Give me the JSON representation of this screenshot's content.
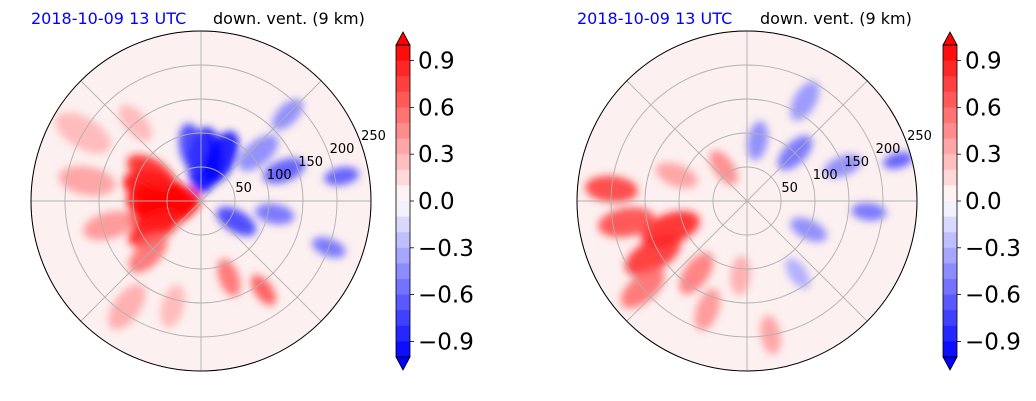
{
  "chart_data": [
    {
      "type": "polar-contour",
      "date_label": "2018-10-09 13 UTC",
      "title": "down. vent. (9 km)",
      "radial_ticks": [
        50,
        100,
        150,
        200,
        250
      ],
      "rmax": 250,
      "colorbar": {
        "ticks": [
          "0.9",
          "0.6",
          "0.3",
          "0.0",
          "−0.3",
          "−0.6",
          "−0.9"
        ],
        "range": [
          -1.0,
          1.0
        ],
        "extend": "both",
        "colormap": "bwr"
      },
      "blobs": [
        {
          "theta": 180,
          "r": 55,
          "size": 34,
          "v": 1.0
        },
        {
          "theta": 195,
          "r": 60,
          "size": 32,
          "v": 1.0
        },
        {
          "theta": 165,
          "r": 70,
          "size": 30,
          "v": 1.0
        },
        {
          "theta": 150,
          "r": 85,
          "size": 24,
          "v": 0.9
        },
        {
          "theta": 210,
          "r": 80,
          "size": 26,
          "v": 0.9
        },
        {
          "theta": 225,
          "r": 110,
          "size": 22,
          "v": 0.6
        },
        {
          "theta": 195,
          "r": 140,
          "size": 24,
          "v": 0.45
        },
        {
          "theta": 170,
          "r": 170,
          "size": 26,
          "v": 0.4
        },
        {
          "theta": 150,
          "r": 200,
          "size": 28,
          "v": 0.3
        },
        {
          "theta": 235,
          "r": 190,
          "size": 24,
          "v": 0.35
        },
        {
          "theta": 255,
          "r": 160,
          "size": 20,
          "v": 0.3
        },
        {
          "theta": 290,
          "r": 120,
          "size": 18,
          "v": 0.6
        },
        {
          "theta": 305,
          "r": 160,
          "size": 16,
          "v": 0.7
        },
        {
          "theta": 130,
          "r": 150,
          "size": 20,
          "v": 0.3
        },
        {
          "theta": 85,
          "r": 60,
          "size": 30,
          "v": -1.0
        },
        {
          "theta": 65,
          "r": 70,
          "size": 26,
          "v": -1.0
        },
        {
          "theta": 100,
          "r": 80,
          "size": 22,
          "v": -0.8
        },
        {
          "theta": 40,
          "r": 110,
          "size": 22,
          "v": -0.5
        },
        {
          "theta": 20,
          "r": 130,
          "size": 20,
          "v": -0.7
        },
        {
          "theta": -10,
          "r": 110,
          "size": 18,
          "v": -0.6
        },
        {
          "theta": -30,
          "r": 60,
          "size": 20,
          "v": -0.8
        },
        {
          "theta": 45,
          "r": 180,
          "size": 18,
          "v": -0.5
        },
        {
          "theta": 10,
          "r": 210,
          "size": 16,
          "v": -0.7
        },
        {
          "theta": -20,
          "r": 200,
          "size": 16,
          "v": -0.6
        }
      ]
    },
    {
      "type": "polar-contour",
      "date_label": "2018-10-09 13 UTC",
      "title": "down. vent. (9 km)",
      "radial_ticks": [
        50,
        100,
        150,
        200,
        250
      ],
      "rmax": 250,
      "colorbar": {
        "ticks": [
          "0.9",
          "0.6",
          "0.3",
          "0.0",
          "−0.3",
          "−0.6",
          "−0.9"
        ],
        "range": [
          -1.0,
          1.0
        ],
        "extend": "both",
        "colormap": "bwr"
      },
      "blobs": [
        {
          "theta": 200,
          "r": 120,
          "size": 28,
          "v": 0.9
        },
        {
          "theta": 210,
          "r": 160,
          "size": 28,
          "v": 0.85
        },
        {
          "theta": 190,
          "r": 180,
          "size": 26,
          "v": 0.75
        },
        {
          "theta": 175,
          "r": 200,
          "size": 24,
          "v": 0.8
        },
        {
          "theta": 220,
          "r": 200,
          "size": 24,
          "v": 0.6
        },
        {
          "theta": 235,
          "r": 130,
          "size": 22,
          "v": 0.55
        },
        {
          "theta": 250,
          "r": 170,
          "size": 20,
          "v": 0.45
        },
        {
          "theta": 160,
          "r": 110,
          "size": 20,
          "v": 0.4
        },
        {
          "theta": 125,
          "r": 60,
          "size": 18,
          "v": 0.5
        },
        {
          "theta": 265,
          "r": 110,
          "size": 18,
          "v": 0.35
        },
        {
          "theta": 280,
          "r": 200,
          "size": 18,
          "v": 0.4
        },
        {
          "theta": 80,
          "r": 90,
          "size": 18,
          "v": -0.5
        },
        {
          "theta": 45,
          "r": 100,
          "size": 20,
          "v": -0.6
        },
        {
          "theta": 60,
          "r": 170,
          "size": 20,
          "v": -0.45
        },
        {
          "theta": 20,
          "r": 150,
          "size": 18,
          "v": -0.5
        },
        {
          "theta": -5,
          "r": 180,
          "size": 16,
          "v": -0.6
        },
        {
          "theta": -25,
          "r": 100,
          "size": 18,
          "v": -0.5
        },
        {
          "theta": 15,
          "r": 230,
          "size": 14,
          "v": -0.7
        },
        {
          "theta": -55,
          "r": 130,
          "size": 16,
          "v": -0.35
        }
      ]
    }
  ]
}
